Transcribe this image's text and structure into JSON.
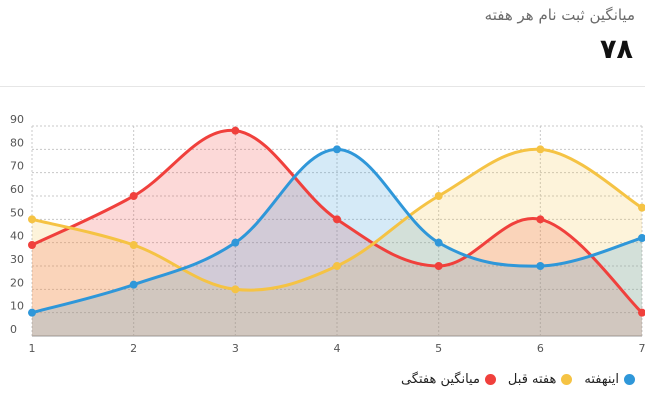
{
  "header": {
    "title": "میانگین ثبت نام هر هفته",
    "value": "۷۸"
  },
  "chart_data": {
    "type": "area",
    "x": [
      1,
      2,
      3,
      4,
      5,
      6,
      7
    ],
    "ylim": [
      0,
      90
    ],
    "yticks": [
      0,
      10,
      20,
      30,
      40,
      50,
      60,
      70,
      80,
      90
    ],
    "grid": true,
    "legend_position": "bottom-right",
    "series": [
      {
        "name": "میانگین هفتگی",
        "color": "#f0403c",
        "values": [
          39,
          60,
          88,
          50,
          30,
          50,
          10
        ]
      },
      {
        "name": "هفته قبل",
        "color": "#f5c344",
        "values": [
          50,
          39,
          20,
          30,
          60,
          80,
          55
        ]
      },
      {
        "name": "اینهفته",
        "color": "#2f97d9",
        "values": [
          10,
          22,
          40,
          80,
          40,
          30,
          42
        ]
      }
    ]
  }
}
